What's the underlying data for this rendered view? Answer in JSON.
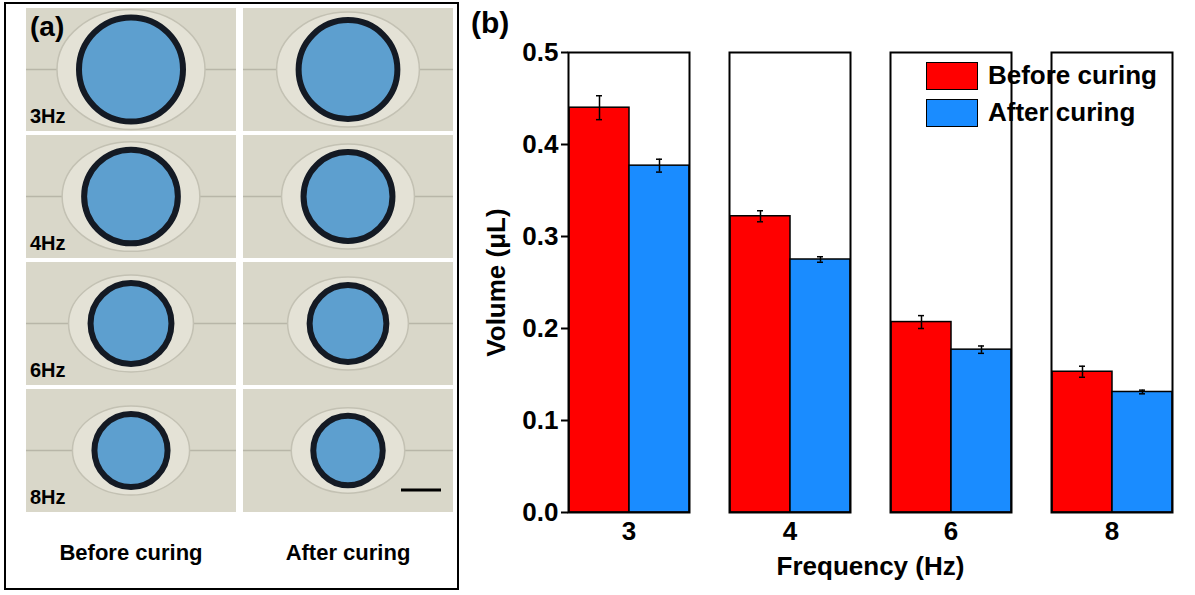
{
  "chart_data": {
    "type": "bar",
    "title": "(b)",
    "x_label": "Frequency (Hz)",
    "y_label": "Volume (μL)",
    "categories": [
      3,
      4,
      6,
      8
    ],
    "series": [
      {
        "name": "Before curing",
        "color": "#ff0000",
        "values": [
          0.44,
          0.322,
          0.207,
          0.153
        ],
        "errors": [
          0.013,
          0.006,
          0.007,
          0.006
        ]
      },
      {
        "name": "After curing",
        "color": "#1a8cff",
        "values": [
          0.377,
          0.275,
          0.177,
          0.131
        ],
        "errors": [
          0.007,
          0.003,
          0.004,
          0.002
        ]
      }
    ],
    "ylim": [
      0,
      0.5
    ],
    "yticks": [
      {
        "value": 0,
        "label": "0.0"
      },
      0.1,
      0.2,
      0.3,
      0.4,
      0.5
    ],
    "legend": "top-right"
  },
  "photo_panel": {
    "label": "(a)",
    "rows": [
      "3Hz",
      "4Hz",
      "6Hz",
      "8Hz"
    ],
    "columns": [
      "Before curing",
      "After curing"
    ]
  }
}
